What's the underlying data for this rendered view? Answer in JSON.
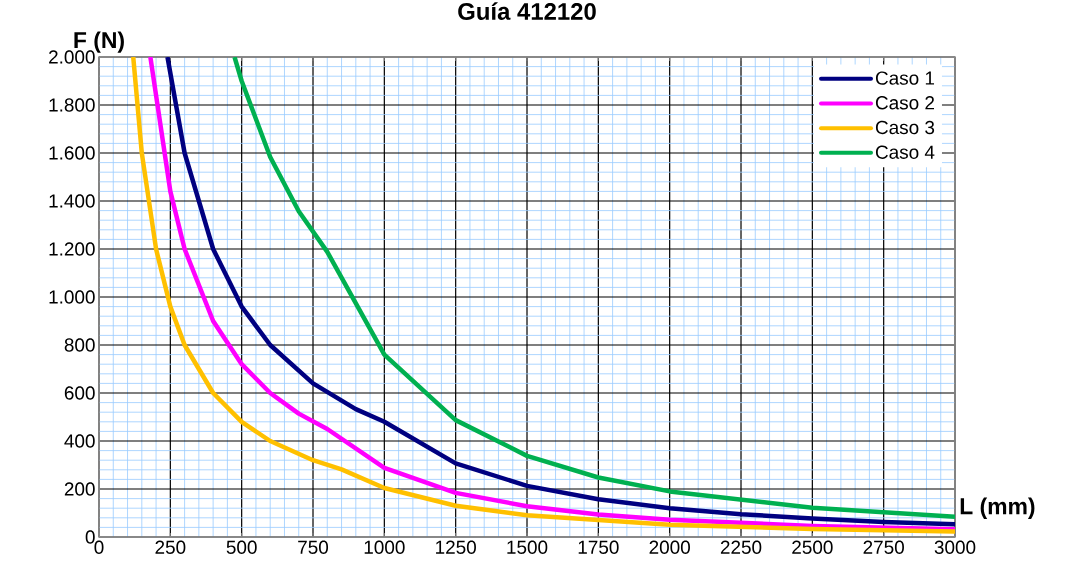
{
  "chart_data": {
    "type": "line",
    "title": "Guía 412120",
    "xlabel": "L (mm)",
    "ylabel": "F (N)",
    "xlim": [
      0,
      3000
    ],
    "ylim": [
      0,
      2000
    ],
    "xticks": [
      0,
      {
        "value": 50,
        "label": null
      },
      {
        "value": 100,
        "label": null
      },
      {
        "value": 150,
        "label": null
      },
      {
        "value": 200,
        "label": null
      },
      250,
      {
        "value": 300,
        "label": null
      },
      {
        "value": 350,
        "label": null
      },
      {
        "value": 400,
        "label": null
      },
      {
        "value": 450,
        "label": null
      },
      500,
      {
        "value": 550,
        "label": null
      },
      {
        "value": 600,
        "label": null
      },
      {
        "value": 650,
        "label": null
      },
      {
        "value": 700,
        "label": null
      },
      750,
      {
        "value": 800,
        "label": null
      },
      {
        "value": 850,
        "label": null
      },
      {
        "value": 900,
        "label": null
      },
      {
        "value": 950,
        "label": null
      },
      1000,
      {
        "value": 1050,
        "label": null
      },
      {
        "value": 1100,
        "label": null
      },
      {
        "value": 1150,
        "label": null
      },
      {
        "value": 1200,
        "label": null
      },
      1250,
      {
        "value": 1300,
        "label": null
      },
      {
        "value": 1350,
        "label": null
      },
      {
        "value": 1400,
        "label": null
      },
      {
        "value": 1450,
        "label": null
      },
      1500,
      {
        "value": 1550,
        "label": null
      },
      {
        "value": 1600,
        "label": null
      },
      {
        "value": 1650,
        "label": null
      },
      {
        "value": 1700,
        "label": null
      },
      1750,
      {
        "value": 1800,
        "label": null
      },
      {
        "value": 1850,
        "label": null
      },
      {
        "value": 1900,
        "label": null
      },
      {
        "value": 1950,
        "label": null
      },
      2000,
      {
        "value": 2050,
        "label": null
      },
      {
        "value": 2100,
        "label": null
      },
      {
        "value": 2150,
        "label": null
      },
      {
        "value": 2200,
        "label": null
      },
      2250,
      {
        "value": 2300,
        "label": null
      },
      {
        "value": 2350,
        "label": null
      },
      {
        "value": 2400,
        "label": null
      },
      {
        "value": 2450,
        "label": null
      },
      2500,
      {
        "value": 2550,
        "label": null
      },
      {
        "value": 2600,
        "label": null
      },
      {
        "value": 2650,
        "label": null
      },
      {
        "value": 2700,
        "label": null
      },
      2750,
      {
        "value": 2800,
        "label": null
      },
      {
        "value": 2850,
        "label": null
      },
      {
        "value": 2900,
        "label": null
      },
      {
        "value": 2950,
        "label": null
      },
      3000
    ],
    "yticks": [
      0,
      {
        "value": 40,
        "label": null
      },
      {
        "value": 80,
        "label": null
      },
      {
        "value": 120,
        "label": null
      },
      {
        "value": 160,
        "label": null
      },
      200,
      {
        "value": 240,
        "label": null
      },
      {
        "value": 280,
        "label": null
      },
      {
        "value": 320,
        "label": null
      },
      {
        "value": 360,
        "label": null
      },
      400,
      {
        "value": 440,
        "label": null
      },
      {
        "value": 480,
        "label": null
      },
      {
        "value": 520,
        "label": null
      },
      {
        "value": 560,
        "label": null
      },
      600,
      {
        "value": 640,
        "label": null
      },
      {
        "value": 680,
        "label": null
      },
      {
        "value": 720,
        "label": null
      },
      {
        "value": 760,
        "label": null
      },
      800,
      {
        "value": 840,
        "label": null
      },
      {
        "value": 880,
        "label": null
      },
      {
        "value": 920,
        "label": null
      },
      {
        "value": 960,
        "label": null
      },
      {
        "value": 1000,
        "label": "1.000"
      },
      {
        "value": 1040,
        "label": null
      },
      {
        "value": 1080,
        "label": null
      },
      {
        "value": 1120,
        "label": null
      },
      {
        "value": 1160,
        "label": null
      },
      {
        "value": 1200,
        "label": "1.200"
      },
      {
        "value": 1240,
        "label": null
      },
      {
        "value": 1280,
        "label": null
      },
      {
        "value": 1320,
        "label": null
      },
      {
        "value": 1360,
        "label": null
      },
      {
        "value": 1400,
        "label": "1.400"
      },
      {
        "value": 1440,
        "label": null
      },
      {
        "value": 1480,
        "label": null
      },
      {
        "value": 1520,
        "label": null
      },
      {
        "value": 1560,
        "label": null
      },
      {
        "value": 1600,
        "label": "1.600"
      },
      {
        "value": 1640,
        "label": null
      },
      {
        "value": 1680,
        "label": null
      },
      {
        "value": 1720,
        "label": null
      },
      {
        "value": 1760,
        "label": null
      },
      {
        "value": 1800,
        "label": "1.800"
      },
      {
        "value": 1840,
        "label": null
      },
      {
        "value": 1880,
        "label": null
      },
      {
        "value": 1920,
        "label": null
      },
      {
        "value": 1960,
        "label": null
      },
      {
        "value": 2000,
        "label": "2.000"
      }
    ],
    "grid": true,
    "legend": "top right",
    "marker": "none",
    "line_style": "solid",
    "series": [
      {
        "name": "Caso 1",
        "color": "#000080",
        "x": [
          240,
          300,
          400,
          500,
          600,
          750,
          900,
          1000,
          1250,
          1500,
          1750,
          2000,
          2250,
          2500,
          2750,
          3000
        ],
        "values": [
          2000,
          1600,
          1200,
          960,
          800,
          640,
          533,
          480,
          307,
          213,
          157,
          120,
          95,
          77,
          63,
          53
        ]
      },
      {
        "name": "Caso 2",
        "color": "#ff00ff",
        "x": [
          180,
          250,
          300,
          400,
          500,
          600,
          700,
          800,
          1000,
          1250,
          1500,
          1750,
          2000,
          2500,
          3000
        ],
        "values": [
          2000,
          1440,
          1200,
          900,
          720,
          600,
          514,
          450,
          288,
          184,
          128,
          94,
          72,
          46,
          32
        ]
      },
      {
        "name": "Caso 3",
        "color": "#ffc000",
        "x": [
          120,
          150,
          200,
          250,
          300,
          400,
          500,
          600,
          750,
          850,
          1000,
          1250,
          1500,
          2000,
          2500,
          3000
        ],
        "values": [
          2000,
          1600,
          1200,
          960,
          800,
          600,
          480,
          400,
          320,
          282,
          204,
          130,
          91,
          51,
          33,
          23
        ]
      },
      {
        "name": "Caso 4",
        "color": "#00b050",
        "x": [
          475,
          500,
          600,
          700,
          800,
          1000,
          1250,
          1500,
          1750,
          2000,
          2500,
          3000
        ],
        "values": [
          2000,
          1900,
          1583,
          1357,
          1188,
          760,
          487,
          338,
          248,
          190,
          122,
          84
        ]
      }
    ]
  }
}
